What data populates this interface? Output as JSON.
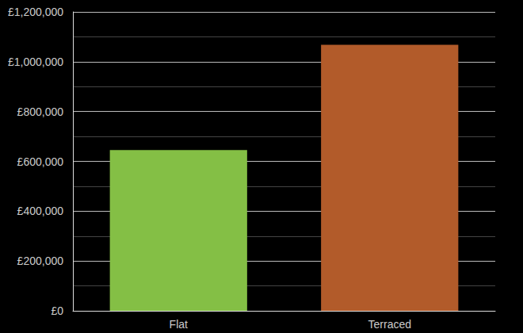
{
  "chart_data": {
    "type": "bar",
    "categories": [
      "Flat",
      "Terraced"
    ],
    "values": [
      645000,
      1068000
    ],
    "colors": [
      "#84bf45",
      "#b25b2a"
    ],
    "ylim": [
      0,
      1200000
    ],
    "yticks": [
      {
        "value": 0,
        "label": "£0"
      },
      {
        "value": 200000,
        "label": "£200,000"
      },
      {
        "value": 400000,
        "label": "£400,000"
      },
      {
        "value": 600000,
        "label": "£600,000"
      },
      {
        "value": 800000,
        "label": "£800,000"
      },
      {
        "value": 1000000,
        "label": "£1,000,000"
      },
      {
        "value": 1200000,
        "label": "£1,200,000"
      }
    ],
    "grid": true
  }
}
